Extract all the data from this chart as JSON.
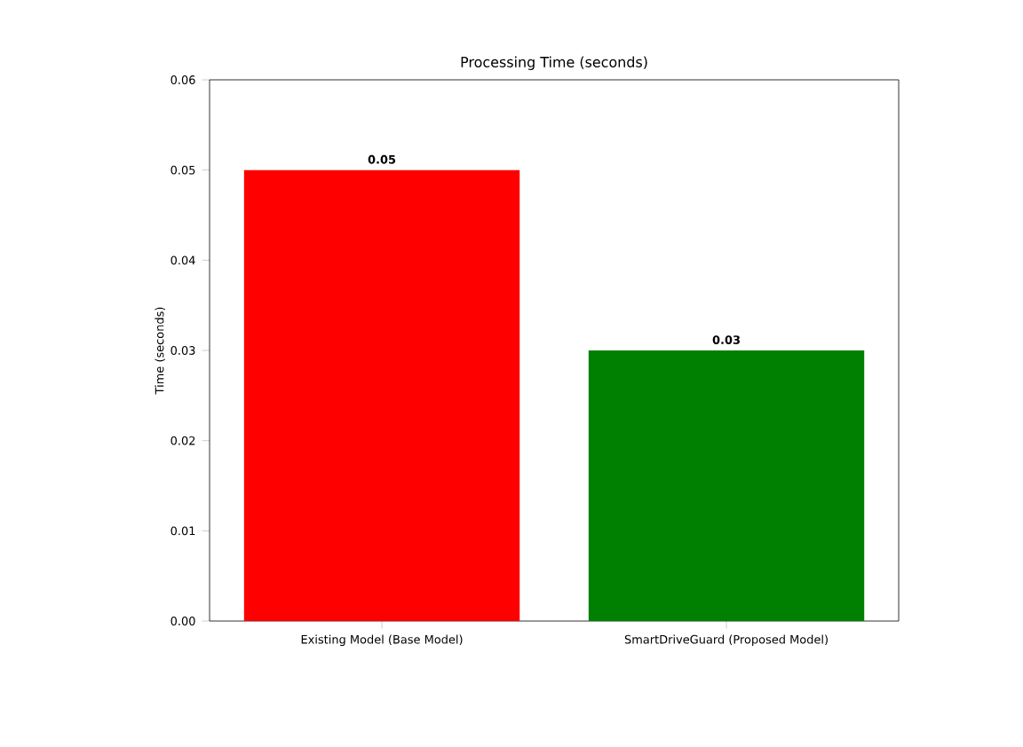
{
  "chart_data": {
    "type": "bar",
    "title": "Processing Time (seconds)",
    "ylabel": "Time (seconds)",
    "categories": [
      "Existing Model (Base Model)",
      "SmartDriveGuard (Proposed Model)"
    ],
    "values": [
      0.05,
      0.03
    ],
    "colors": [
      "#ff0000",
      "#008000"
    ],
    "value_labels": [
      "0.05",
      "0.03"
    ],
    "ylim": [
      0,
      0.06
    ],
    "yticks": [
      {
        "value": 0,
        "label": "0.00"
      },
      {
        "value": 0.01,
        "label": "0.01"
      },
      {
        "value": 0.02,
        "label": "0.02"
      },
      {
        "value": 0.03,
        "label": "0.03"
      },
      {
        "value": 0.04,
        "label": "0.04"
      },
      {
        "value": 0.05,
        "label": "0.05"
      },
      {
        "value": 0.06,
        "label": "0.06"
      }
    ]
  }
}
